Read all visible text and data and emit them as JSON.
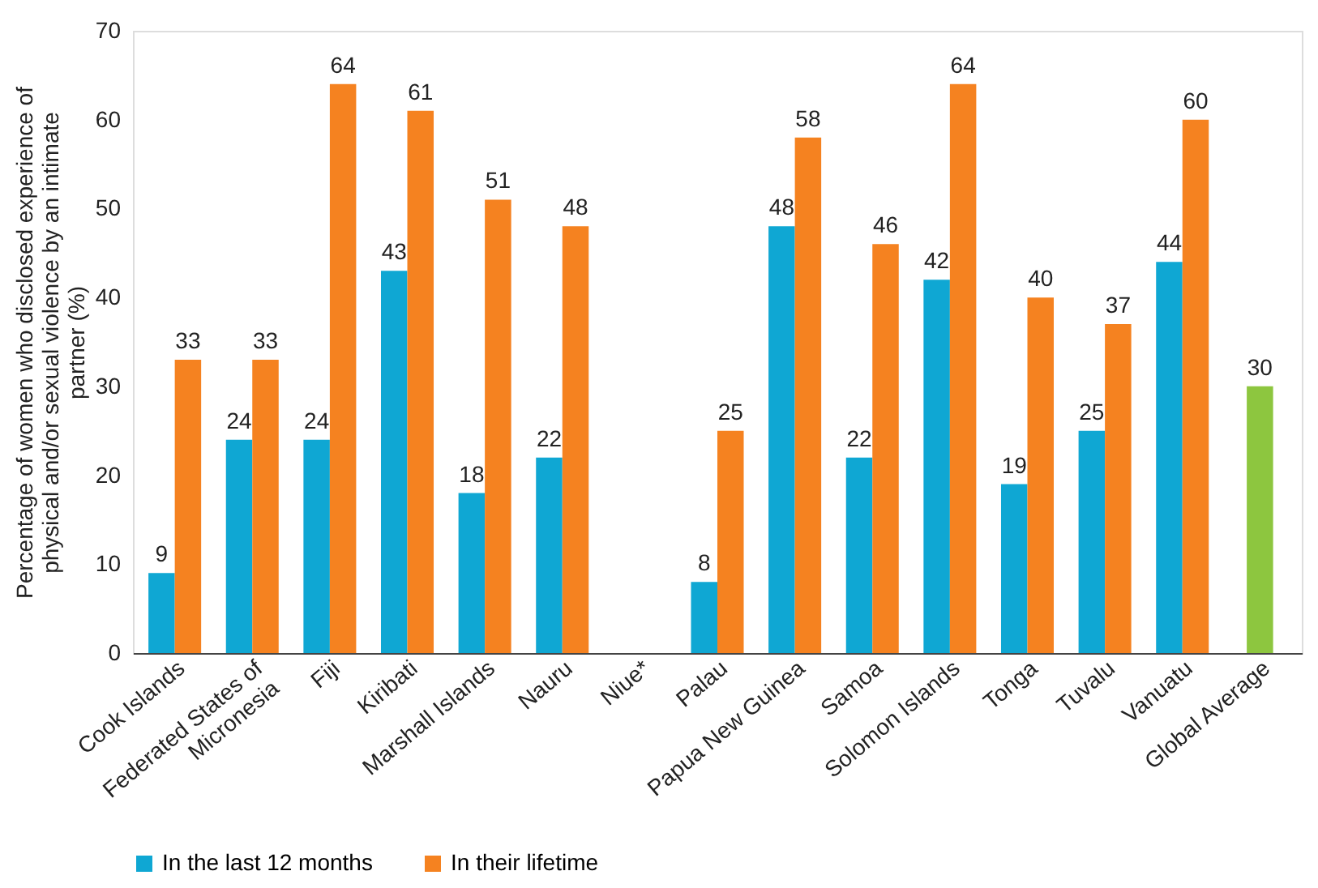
{
  "chart_data": {
    "type": "bar",
    "ylabel": "Percentage of women who disclosed experience of physical and/or sexual violence by an intimate partner (%)",
    "categories": [
      "Cook Islands",
      "Federated States of Micronesia",
      "Fiji",
      "Kiribati",
      "Marshall Islands",
      "Nauru",
      "Niue*",
      "Palau",
      "Papua New Guinea",
      "Samoa",
      "Solomon Islands",
      "Tonga",
      "Tuvalu",
      "Vanuatu",
      "Global Average"
    ],
    "series": [
      {
        "name": "In the last 12 months",
        "color": "#0fa7d3",
        "values": [
          9,
          24,
          24,
          43,
          18,
          22,
          null,
          8,
          48,
          22,
          42,
          19,
          25,
          44,
          null
        ]
      },
      {
        "name": "In their lifetime",
        "color": "#f58220",
        "values": [
          33,
          33,
          64,
          61,
          51,
          48,
          null,
          25,
          58,
          46,
          64,
          40,
          37,
          60,
          null
        ]
      },
      {
        "color": "#8dc63f",
        "values": [
          null,
          null,
          null,
          null,
          null,
          null,
          null,
          null,
          null,
          null,
          null,
          null,
          null,
          null,
          30
        ]
      }
    ],
    "ylim": [
      0,
      70
    ],
    "yticks": [
      0,
      10,
      20,
      30,
      40,
      50,
      60,
      70
    ],
    "data_labels": true,
    "grid": false,
    "legend": "bottom"
  }
}
